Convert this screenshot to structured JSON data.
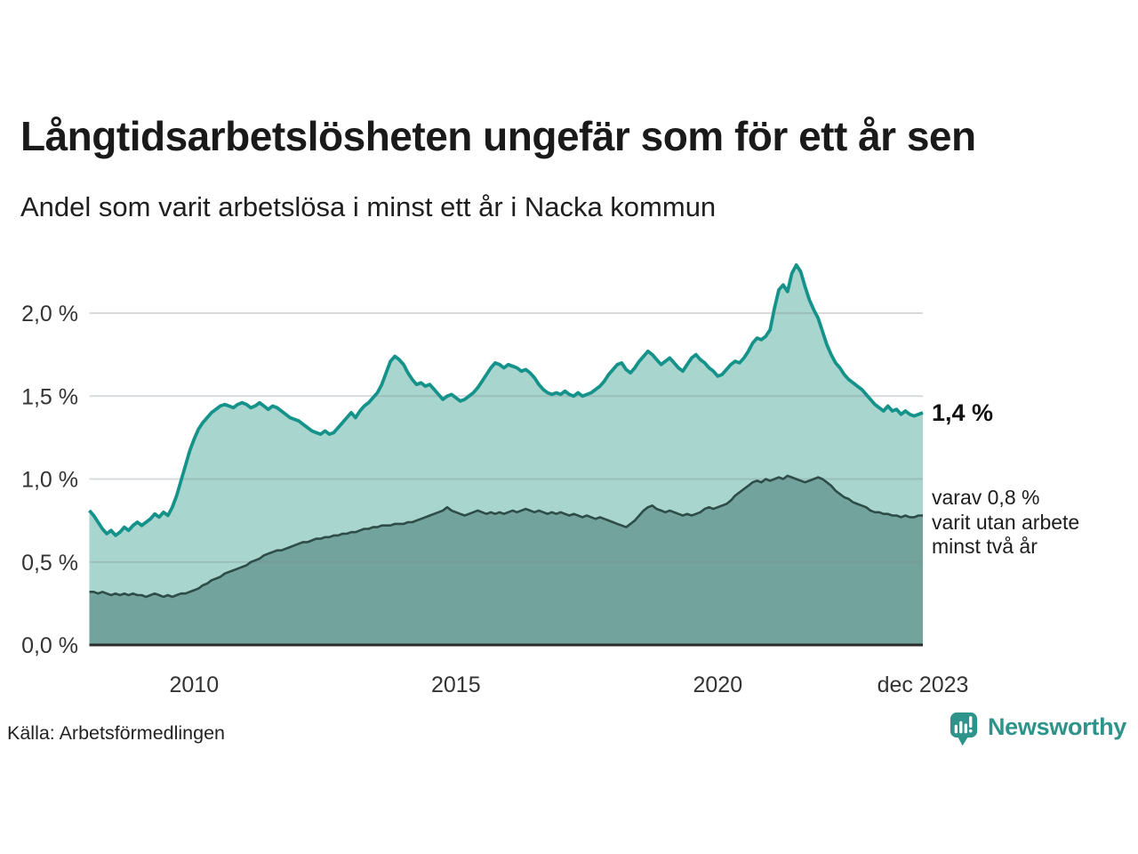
{
  "header": {
    "title": "Långtidsarbetslösheten ungefär som för ett år sen",
    "subtitle": "Andel som varit arbetslösa i minst ett år i Nacka kommun"
  },
  "annotations": {
    "latest_label": "1,4 %",
    "note_line1": "varav 0,8 %",
    "note_line2": "varit utan arbete",
    "note_line3": "minst två år"
  },
  "footer": {
    "source": "Källa: Arbetsförmedlingen",
    "brand": "Newsworthy"
  },
  "colors": {
    "accent_teal_line": "#15938a",
    "fill_light_teal": "#a9d5cf",
    "fill_dark_teal": "#73a39d",
    "stroke_dark": "#2e4c48",
    "grid": "#7e8a94",
    "axis": "#2b2b2b",
    "tick_text": "#333333",
    "brand_teal": "#2e938b"
  },
  "chart_data": {
    "type": "area",
    "title": "Långtidsarbetslösheten ungefär som för ett år sen",
    "subtitle": "Andel som varit arbetslösa i minst ett år i Nacka kommun",
    "unit": "%",
    "frequency": "monthly",
    "x_start": "2008-01",
    "x_end": "2023-12",
    "ylim": [
      0,
      2.4
    ],
    "grid": "horizontal",
    "legend_position": "right-annotations",
    "yticks": [
      {
        "value": 0.0,
        "label": "0,0 %"
      },
      {
        "value": 0.5,
        "label": "0,5 %"
      },
      {
        "value": 1.0,
        "label": "1,0 %"
      },
      {
        "value": 1.5,
        "label": "1,5 %"
      },
      {
        "value": 2.0,
        "label": "2,0 %"
      }
    ],
    "xticks": [
      {
        "month_index": 24,
        "label": "2010"
      },
      {
        "month_index": 84,
        "label": "2015"
      },
      {
        "month_index": 144,
        "label": "2020"
      },
      {
        "month_index": 191,
        "label": "dec 2023"
      }
    ],
    "series": [
      {
        "name": "Andel som varit arbetslösa minst ett år",
        "latest_value": 1.4,
        "values": [
          0.81,
          0.78,
          0.74,
          0.7,
          0.67,
          0.69,
          0.66,
          0.68,
          0.71,
          0.69,
          0.72,
          0.74,
          0.72,
          0.74,
          0.76,
          0.79,
          0.77,
          0.8,
          0.78,
          0.83,
          0.9,
          0.99,
          1.08,
          1.17,
          1.24,
          1.3,
          1.34,
          1.37,
          1.4,
          1.42,
          1.44,
          1.45,
          1.44,
          1.43,
          1.45,
          1.46,
          1.45,
          1.43,
          1.44,
          1.46,
          1.44,
          1.42,
          1.44,
          1.43,
          1.41,
          1.39,
          1.37,
          1.36,
          1.35,
          1.33,
          1.31,
          1.29,
          1.28,
          1.27,
          1.29,
          1.27,
          1.28,
          1.31,
          1.34,
          1.37,
          1.4,
          1.37,
          1.41,
          1.44,
          1.46,
          1.49,
          1.52,
          1.57,
          1.64,
          1.71,
          1.74,
          1.72,
          1.69,
          1.64,
          1.6,
          1.57,
          1.58,
          1.56,
          1.57,
          1.54,
          1.51,
          1.48,
          1.5,
          1.51,
          1.49,
          1.47,
          1.48,
          1.5,
          1.52,
          1.55,
          1.59,
          1.63,
          1.67,
          1.7,
          1.69,
          1.67,
          1.69,
          1.68,
          1.67,
          1.65,
          1.66,
          1.64,
          1.61,
          1.57,
          1.54,
          1.52,
          1.51,
          1.52,
          1.51,
          1.53,
          1.51,
          1.5,
          1.52,
          1.5,
          1.51,
          1.52,
          1.54,
          1.56,
          1.59,
          1.63,
          1.66,
          1.69,
          1.7,
          1.66,
          1.64,
          1.67,
          1.71,
          1.74,
          1.77,
          1.75,
          1.72,
          1.69,
          1.71,
          1.73,
          1.7,
          1.67,
          1.65,
          1.69,
          1.73,
          1.75,
          1.72,
          1.7,
          1.67,
          1.65,
          1.62,
          1.63,
          1.66,
          1.69,
          1.71,
          1.7,
          1.73,
          1.77,
          1.82,
          1.85,
          1.84,
          1.86,
          1.9,
          2.03,
          2.14,
          2.17,
          2.13,
          2.24,
          2.29,
          2.25,
          2.16,
          2.08,
          2.02,
          1.97,
          1.89,
          1.81,
          1.75,
          1.7,
          1.67,
          1.63,
          1.6,
          1.58,
          1.56,
          1.54,
          1.51,
          1.48,
          1.45,
          1.43,
          1.41,
          1.44,
          1.41,
          1.42,
          1.39,
          1.41,
          1.39,
          1.38,
          1.39,
          1.4
        ]
      },
      {
        "name": "varav utan arbete minst två år",
        "latest_value": 0.8,
        "values": [
          0.32,
          0.32,
          0.31,
          0.32,
          0.31,
          0.3,
          0.31,
          0.3,
          0.31,
          0.3,
          0.31,
          0.3,
          0.3,
          0.29,
          0.3,
          0.31,
          0.3,
          0.29,
          0.3,
          0.29,
          0.3,
          0.31,
          0.31,
          0.32,
          0.33,
          0.34,
          0.36,
          0.37,
          0.39,
          0.4,
          0.41,
          0.43,
          0.44,
          0.45,
          0.46,
          0.47,
          0.48,
          0.5,
          0.51,
          0.52,
          0.54,
          0.55,
          0.56,
          0.57,
          0.57,
          0.58,
          0.59,
          0.6,
          0.61,
          0.62,
          0.62,
          0.63,
          0.64,
          0.64,
          0.65,
          0.65,
          0.66,
          0.66,
          0.67,
          0.67,
          0.68,
          0.68,
          0.69,
          0.7,
          0.7,
          0.71,
          0.71,
          0.72,
          0.72,
          0.72,
          0.73,
          0.73,
          0.73,
          0.74,
          0.74,
          0.75,
          0.76,
          0.77,
          0.78,
          0.79,
          0.8,
          0.81,
          0.83,
          0.81,
          0.8,
          0.79,
          0.78,
          0.79,
          0.8,
          0.81,
          0.8,
          0.79,
          0.8,
          0.79,
          0.8,
          0.79,
          0.8,
          0.81,
          0.8,
          0.81,
          0.82,
          0.81,
          0.8,
          0.81,
          0.8,
          0.79,
          0.8,
          0.79,
          0.8,
          0.79,
          0.78,
          0.79,
          0.78,
          0.77,
          0.78,
          0.77,
          0.76,
          0.77,
          0.76,
          0.75,
          0.74,
          0.73,
          0.72,
          0.71,
          0.73,
          0.75,
          0.78,
          0.81,
          0.83,
          0.84,
          0.82,
          0.81,
          0.8,
          0.81,
          0.8,
          0.79,
          0.78,
          0.79,
          0.78,
          0.79,
          0.8,
          0.82,
          0.83,
          0.82,
          0.83,
          0.84,
          0.85,
          0.87,
          0.9,
          0.92,
          0.94,
          0.96,
          0.98,
          0.99,
          0.98,
          1.0,
          0.99,
          1.0,
          1.01,
          1.0,
          1.02,
          1.01,
          1.0,
          0.99,
          0.98,
          0.99,
          1.0,
          1.01,
          1.0,
          0.98,
          0.96,
          0.93,
          0.91,
          0.89,
          0.88,
          0.86,
          0.85,
          0.84,
          0.83,
          0.81,
          0.8,
          0.8,
          0.79,
          0.79,
          0.78,
          0.78,
          0.77,
          0.78,
          0.77,
          0.77,
          0.78,
          0.78
        ]
      }
    ]
  }
}
